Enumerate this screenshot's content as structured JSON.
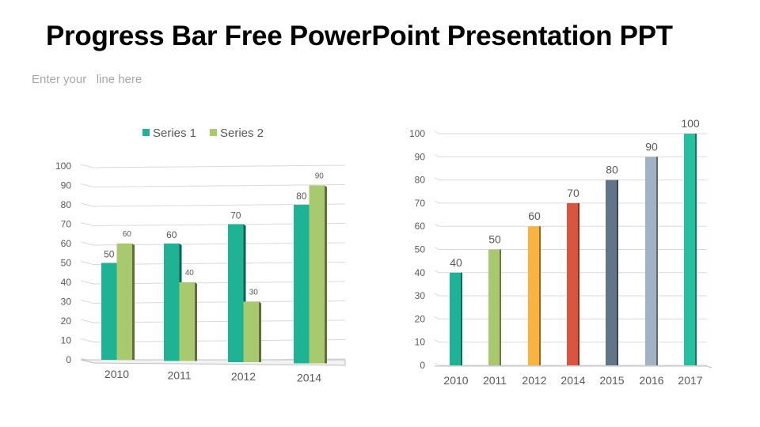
{
  "title": "Progress Bar Free PowerPoint Presentation PPT",
  "subtitle": "Enter your   line here",
  "chart_data": [
    {
      "type": "bar",
      "categories": [
        "2010",
        "2011",
        "2012",
        "2014"
      ],
      "series": [
        {
          "name": "Series 1",
          "values": [
            50,
            60,
            70,
            80
          ],
          "color": "#1db394"
        },
        {
          "name": "Series 2",
          "values": [
            60,
            40,
            30,
            90
          ],
          "color": "#a9c96f"
        }
      ],
      "ylim": [
        0,
        100
      ],
      "yticks": [
        "0",
        "10",
        "20",
        "30",
        "40",
        "50",
        "60",
        "70",
        "80",
        "90",
        "100"
      ],
      "grid": true,
      "legend": "top",
      "style": "3d clustered column"
    },
    {
      "type": "bar",
      "categories": [
        "2010",
        "2011",
        "2012",
        "2014",
        "2015",
        "2016",
        "2017"
      ],
      "values": [
        40,
        50,
        60,
        70,
        80,
        90,
        100
      ],
      "colors": [
        "#1db394",
        "#a9c96f",
        "#fbb33d",
        "#d9553f",
        "#627488",
        "#a1b2c4",
        "#25c0a0"
      ],
      "ylim": [
        0,
        100
      ],
      "yticks": [
        "0",
        "10",
        "20",
        "30",
        "40",
        "50",
        "60",
        "70",
        "80",
        "90",
        "100"
      ],
      "grid": true,
      "legend": "none"
    }
  ]
}
